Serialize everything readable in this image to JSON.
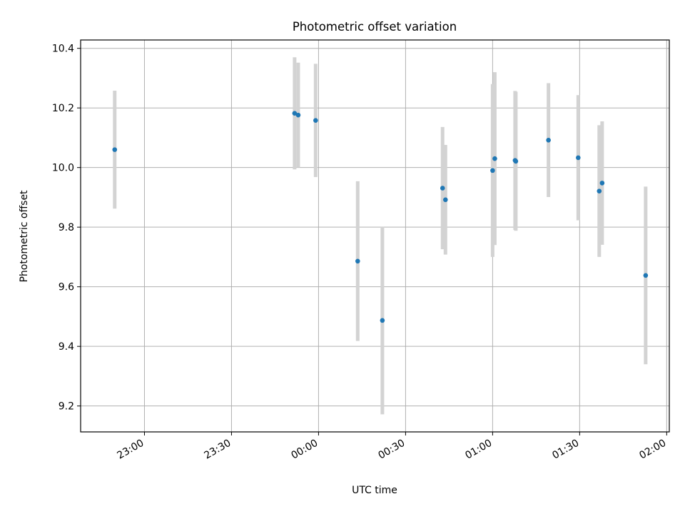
{
  "chart_data": {
    "type": "scatter",
    "title": "Photometric offset variation",
    "xlabel": "UTC time",
    "ylabel": "Photometric offset",
    "grid": true,
    "xlim": [
      "22:38:00",
      "02:00:54"
    ],
    "ylim": [
      9.113,
      10.428
    ],
    "x_ticks": [
      "23:00",
      "23:30",
      "00:00",
      "00:30",
      "01:00",
      "01:30",
      "02:00"
    ],
    "y_ticks": [
      "9.2",
      "9.4",
      "9.6",
      "9.8",
      "10.0",
      "10.2",
      "10.4"
    ],
    "marker_color": "#1f77b4",
    "errorbar_color": "#d3d3d3",
    "points": [
      {
        "time": "22:49:45",
        "value": 10.06,
        "err": 0.198
      },
      {
        "time": "23:51:45",
        "value": 10.182,
        "err": 0.188
      },
      {
        "time": "23:53:00",
        "value": 10.176,
        "err": 0.176
      },
      {
        "time": "23:59:00",
        "value": 10.158,
        "err": 0.19
      },
      {
        "time": "00:13:30",
        "value": 9.686,
        "err": 0.268
      },
      {
        "time": "00:22:00",
        "value": 9.487,
        "err": 0.315
      },
      {
        "time": "00:42:45",
        "value": 9.931,
        "err": 0.205
      },
      {
        "time": "00:43:45",
        "value": 9.892,
        "err": 0.184
      },
      {
        "time": "01:00:00",
        "value": 9.99,
        "err": 0.29
      },
      {
        "time": "01:00:45",
        "value": 10.03,
        "err": 0.29
      },
      {
        "time": "01:07:45",
        "value": 10.024,
        "err": 0.233
      },
      {
        "time": "01:08:00",
        "value": 10.021,
        "err": 0.233
      },
      {
        "time": "01:19:15",
        "value": 10.092,
        "err": 0.191
      },
      {
        "time": "01:29:30",
        "value": 10.033,
        "err": 0.21
      },
      {
        "time": "01:36:45",
        "value": 9.921,
        "err": 0.221
      },
      {
        "time": "01:37:45",
        "value": 9.948,
        "err": 0.207
      },
      {
        "time": "01:52:45",
        "value": 9.638,
        "err": 0.298
      }
    ]
  }
}
